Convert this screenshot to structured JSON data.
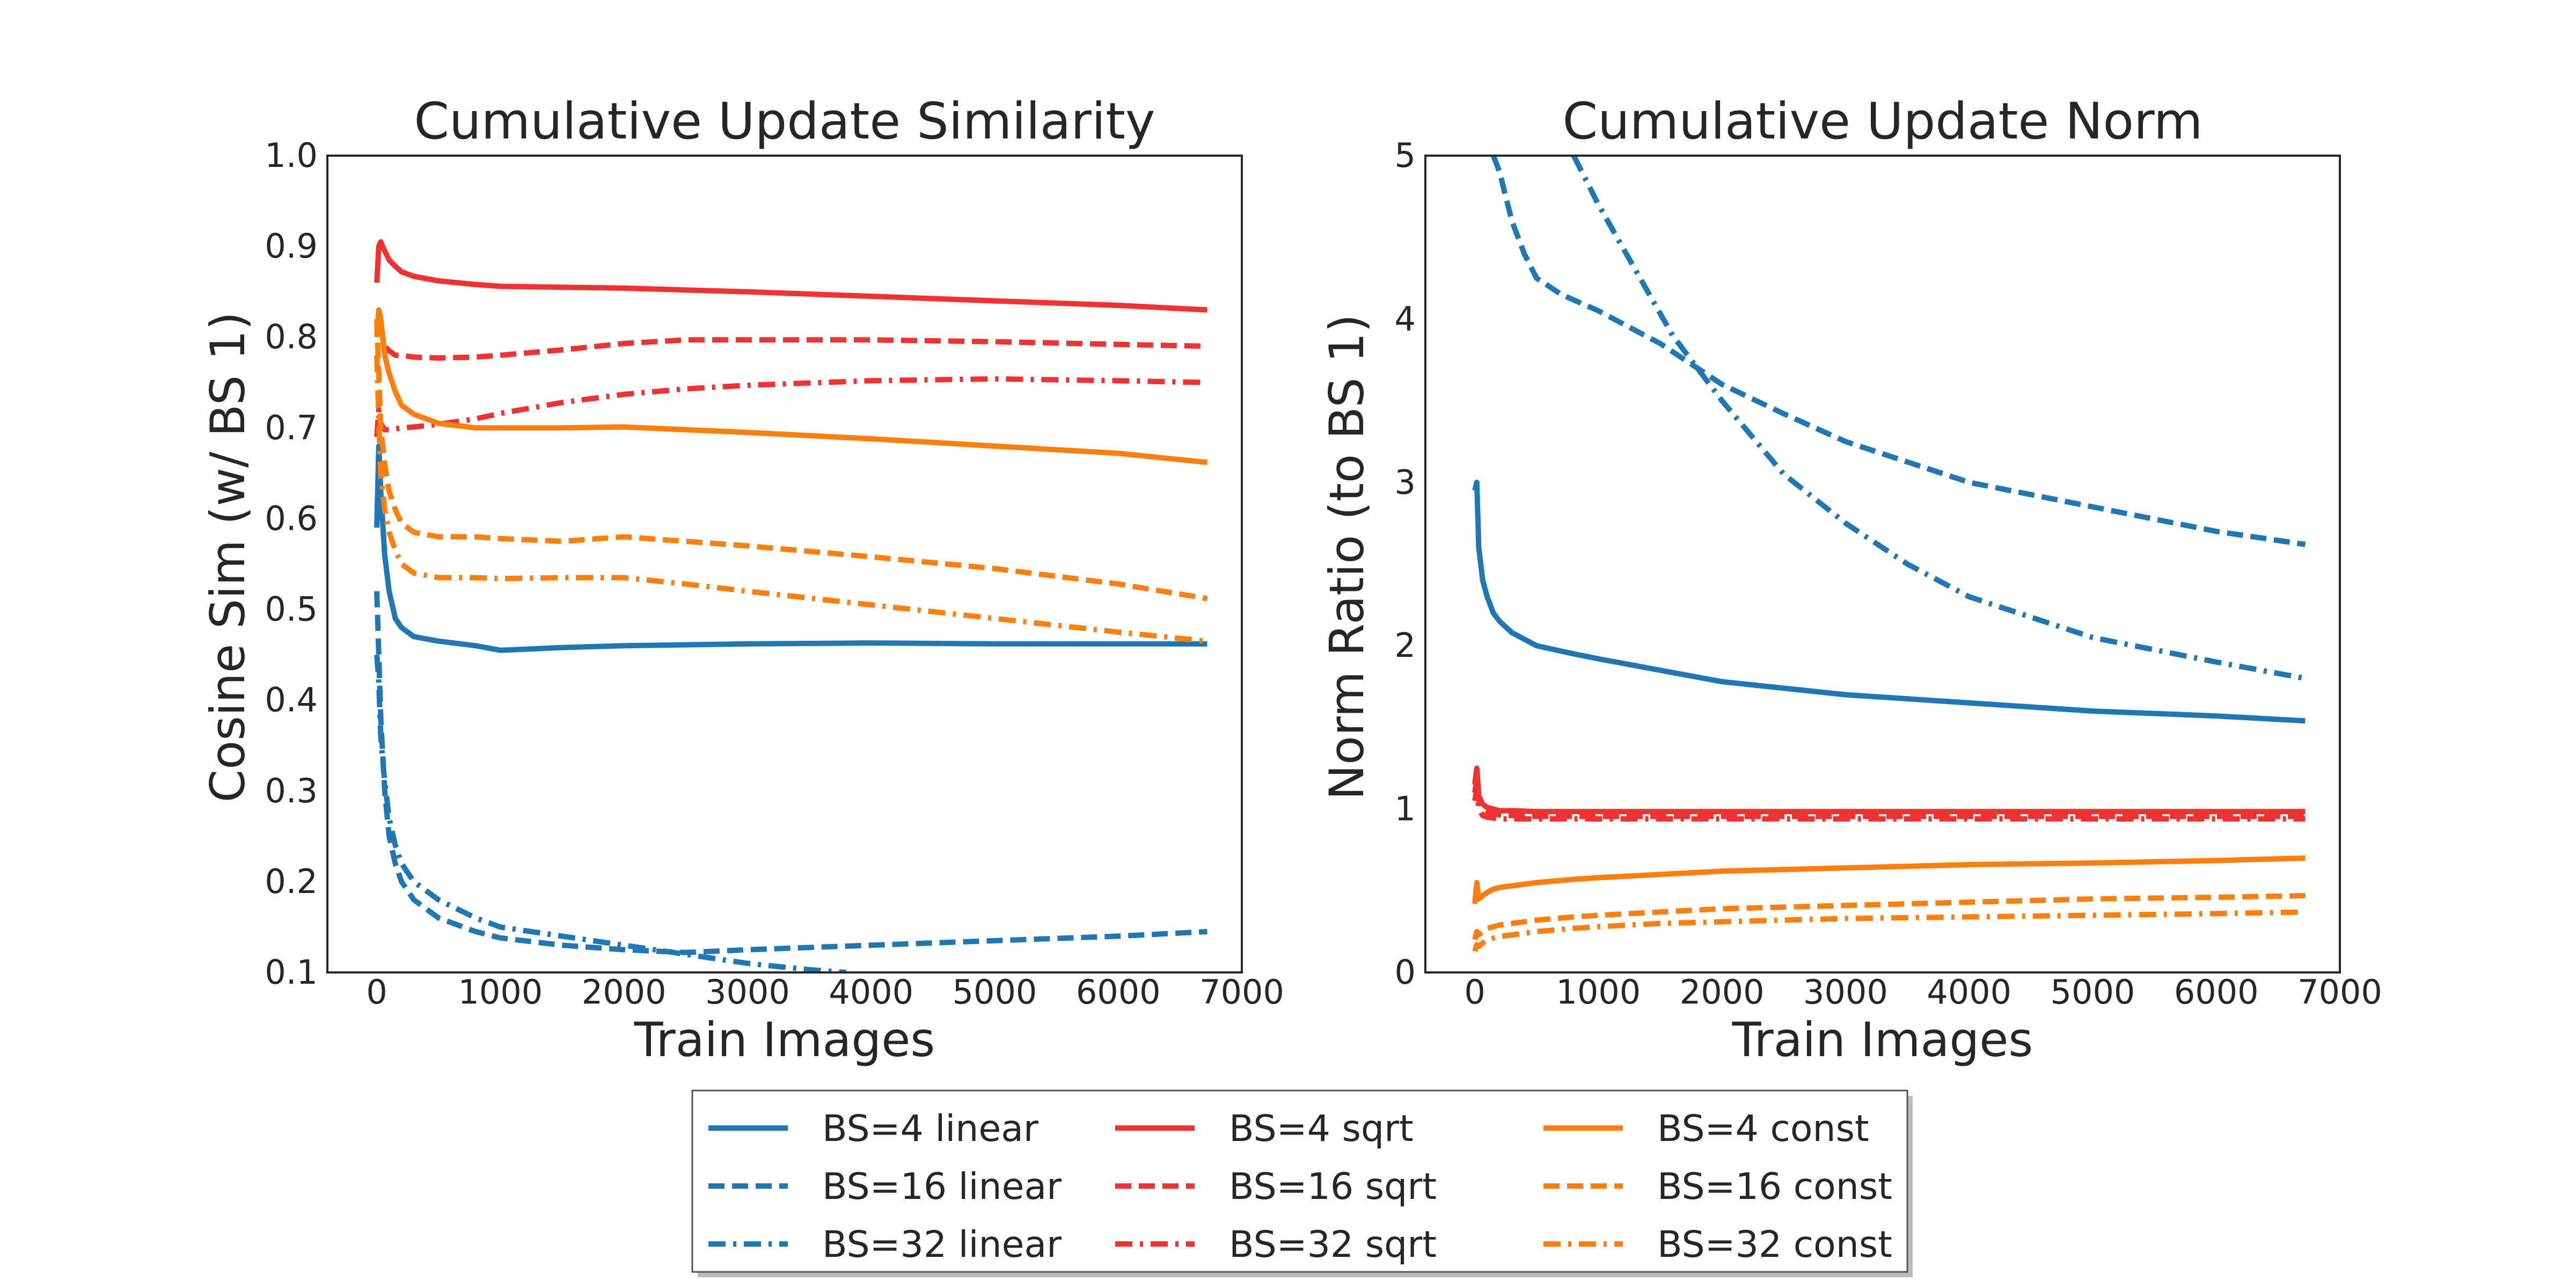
{
  "colors": {
    "linear": "#1f77b4",
    "sqrt": "#f03232",
    "const": "#ff7f0e",
    "axes": "#262626"
  },
  "legend": {
    "placement": "bottom-center",
    "entries": [
      {
        "label": "BS=4 linear",
        "color": "#1f77b4",
        "dash": "solid"
      },
      {
        "label": "BS=16 linear",
        "color": "#1f77b4",
        "dash": "dashed"
      },
      {
        "label": "BS=32 linear",
        "color": "#1f77b4",
        "dash": "dashdot"
      },
      {
        "label": "BS=4 sqrt",
        "color": "#f03232",
        "dash": "solid"
      },
      {
        "label": "BS=16 sqrt",
        "color": "#f03232",
        "dash": "dashed"
      },
      {
        "label": "BS=32 sqrt",
        "color": "#f03232",
        "dash": "dashdot"
      },
      {
        "label": "BS=4 const",
        "color": "#ff7f0e",
        "dash": "solid"
      },
      {
        "label": "BS=16 const",
        "color": "#ff7f0e",
        "dash": "dashed"
      },
      {
        "label": "BS=32 const",
        "color": "#ff7f0e",
        "dash": "dashdot"
      }
    ]
  },
  "chart_data": [
    {
      "type": "line",
      "title": "Cumulative Update Similarity",
      "xlabel": "Train Images",
      "ylabel": "Cosine Sim (w/ BS 1)",
      "xlim": [
        -400,
        7000
      ],
      "ylim": [
        0.1,
        1.0
      ],
      "xticks": [
        0,
        1000,
        2000,
        3000,
        4000,
        5000,
        6000,
        7000
      ],
      "yticks": [
        0.1,
        0.2,
        0.3,
        0.4,
        0.5,
        0.6,
        0.7,
        0.8,
        0.9,
        1.0
      ],
      "xtick_labels": [
        "0",
        "1000",
        "2000",
        "3000",
        "4000",
        "5000",
        "6000",
        "7000"
      ],
      "ytick_labels": [
        "0.1",
        "0.2",
        "0.3",
        "0.4",
        "0.5",
        "0.6",
        "0.7",
        "0.8",
        "0.9",
        "1.0"
      ],
      "grid": false,
      "series": [
        {
          "name": "BS=4 linear",
          "color": "#1f77b4",
          "dash": "solid",
          "x": [
            0,
            16,
            32,
            64,
            100,
            150,
            200,
            300,
            500,
            800,
            1000,
            1500,
            2000,
            3000,
            4000,
            5000,
            6000,
            6720
          ],
          "y": [
            0.59,
            0.68,
            0.63,
            0.56,
            0.52,
            0.49,
            0.48,
            0.47,
            0.465,
            0.46,
            0.455,
            0.458,
            0.46,
            0.462,
            0.463,
            0.462,
            0.462,
            0.462
          ]
        },
        {
          "name": "BS=16 linear",
          "color": "#1f77b4",
          "dash": "dashed",
          "x": [
            0,
            16,
            32,
            64,
            100,
            150,
            200,
            300,
            500,
            800,
            1000,
            1500,
            2000,
            2500,
            3000,
            4000,
            5000,
            6000,
            6720
          ],
          "y": [
            0.52,
            0.45,
            0.38,
            0.3,
            0.25,
            0.22,
            0.2,
            0.18,
            0.16,
            0.145,
            0.138,
            0.13,
            0.125,
            0.122,
            0.125,
            0.13,
            0.135,
            0.14,
            0.145
          ]
        },
        {
          "name": "BS=32 linear",
          "color": "#1f77b4",
          "dash": "dashdot",
          "x": [
            0,
            16,
            32,
            64,
            100,
            150,
            200,
            300,
            500,
            800,
            1000,
            1500,
            2000,
            2500,
            3000,
            3500,
            3800
          ],
          "y": [
            0.45,
            0.42,
            0.36,
            0.31,
            0.27,
            0.24,
            0.22,
            0.2,
            0.18,
            0.16,
            0.15,
            0.14,
            0.13,
            0.12,
            0.11,
            0.103,
            0.1
          ]
        },
        {
          "name": "BS=4 sqrt",
          "color": "#f03232",
          "dash": "solid",
          "x": [
            0,
            16,
            32,
            64,
            100,
            150,
            200,
            300,
            500,
            800,
            1000,
            1500,
            2000,
            3000,
            4000,
            5000,
            6000,
            6720
          ],
          "y": [
            0.86,
            0.9,
            0.905,
            0.895,
            0.885,
            0.878,
            0.872,
            0.867,
            0.862,
            0.858,
            0.856,
            0.855,
            0.854,
            0.85,
            0.845,
            0.84,
            0.835,
            0.83
          ]
        },
        {
          "name": "BS=16 sqrt",
          "color": "#f03232",
          "dash": "dashed",
          "x": [
            0,
            16,
            32,
            64,
            100,
            150,
            200,
            300,
            500,
            800,
            1000,
            1500,
            2000,
            2500,
            3000,
            4000,
            5000,
            6000,
            6720
          ],
          "y": [
            0.8,
            0.82,
            0.81,
            0.79,
            0.785,
            0.78,
            0.78,
            0.778,
            0.777,
            0.778,
            0.78,
            0.786,
            0.793,
            0.797,
            0.797,
            0.797,
            0.795,
            0.792,
            0.79
          ]
        },
        {
          "name": "BS=32 sqrt",
          "color": "#f03232",
          "dash": "dashdot",
          "x": [
            0,
            16,
            32,
            64,
            100,
            150,
            200,
            300,
            500,
            800,
            1000,
            1500,
            2000,
            2500,
            3000,
            4000,
            5000,
            6000,
            6720
          ],
          "y": [
            0.69,
            0.72,
            0.705,
            0.698,
            0.698,
            0.699,
            0.7,
            0.701,
            0.704,
            0.71,
            0.716,
            0.728,
            0.737,
            0.743,
            0.747,
            0.752,
            0.754,
            0.752,
            0.75
          ]
        },
        {
          "name": "BS=4 const",
          "color": "#ff7f0e",
          "dash": "solid",
          "x": [
            0,
            16,
            32,
            64,
            100,
            150,
            200,
            300,
            500,
            800,
            1000,
            1500,
            2000,
            3000,
            4000,
            5000,
            6000,
            6720
          ],
          "y": [
            0.8,
            0.83,
            0.82,
            0.78,
            0.76,
            0.74,
            0.725,
            0.715,
            0.705,
            0.7,
            0.7,
            0.7,
            0.701,
            0.695,
            0.688,
            0.68,
            0.672,
            0.662
          ]
        },
        {
          "name": "BS=16 const",
          "color": "#ff7f0e",
          "dash": "dashed",
          "x": [
            0,
            16,
            32,
            64,
            100,
            150,
            200,
            300,
            500,
            800,
            1000,
            1500,
            2000,
            2500,
            3000,
            4000,
            5000,
            6000,
            6720
          ],
          "y": [
            0.82,
            0.76,
            0.7,
            0.66,
            0.63,
            0.61,
            0.595,
            0.585,
            0.58,
            0.58,
            0.578,
            0.575,
            0.58,
            0.575,
            0.57,
            0.558,
            0.545,
            0.528,
            0.512
          ]
        },
        {
          "name": "BS=32 const",
          "color": "#ff7f0e",
          "dash": "dashdot",
          "x": [
            0,
            16,
            32,
            64,
            100,
            150,
            200,
            300,
            500,
            800,
            1000,
            1500,
            2000,
            2500,
            3000,
            4000,
            5000,
            6000,
            6720
          ],
          "y": [
            0.78,
            0.71,
            0.65,
            0.61,
            0.585,
            0.565,
            0.55,
            0.54,
            0.535,
            0.535,
            0.534,
            0.535,
            0.535,
            0.528,
            0.52,
            0.505,
            0.49,
            0.475,
            0.465
          ]
        }
      ]
    },
    {
      "type": "line",
      "title": "Cumulative Update Norm",
      "xlabel": "Train Images",
      "ylabel": "Norm Ratio (to BS 1)",
      "xlim": [
        -400,
        7000
      ],
      "ylim": [
        0,
        5
      ],
      "xticks": [
        0,
        1000,
        2000,
        3000,
        4000,
        5000,
        6000,
        7000
      ],
      "yticks": [
        0,
        1,
        2,
        3,
        4,
        5
      ],
      "xtick_labels": [
        "0",
        "1000",
        "2000",
        "3000",
        "4000",
        "5000",
        "6000",
        "7000"
      ],
      "ytick_labels": [
        "0",
        "1",
        "2",
        "3",
        "4",
        "5"
      ],
      "grid": false,
      "series": [
        {
          "name": "BS=4 linear",
          "color": "#1f77b4",
          "dash": "solid",
          "x": [
            0,
            16,
            32,
            64,
            100,
            150,
            200,
            300,
            500,
            800,
            1000,
            1500,
            2000,
            3000,
            4000,
            5000,
            6000,
            6720
          ],
          "y": [
            2.95,
            3.0,
            2.6,
            2.4,
            2.3,
            2.2,
            2.15,
            2.08,
            2.0,
            1.95,
            1.92,
            1.85,
            1.78,
            1.7,
            1.65,
            1.6,
            1.57,
            1.54
          ]
        },
        {
          "name": "BS=16 linear",
          "color": "#1f77b4",
          "dash": "dashed",
          "x": [
            150,
            200,
            300,
            400,
            500,
            700,
            1000,
            1500,
            2000,
            2500,
            3000,
            4000,
            5000,
            6000,
            6720
          ],
          "y": [
            5.0,
            4.9,
            4.6,
            4.4,
            4.25,
            4.15,
            4.05,
            3.85,
            3.6,
            3.42,
            3.25,
            3.0,
            2.85,
            2.7,
            2.62
          ]
        },
        {
          "name": "BS=32 linear",
          "color": "#1f77b4",
          "dash": "dashdot",
          "x": [
            800,
            1000,
            1300,
            1600,
            2000,
            2500,
            3000,
            3500,
            4000,
            5000,
            6000,
            6720
          ],
          "y": [
            5.0,
            4.7,
            4.3,
            3.9,
            3.5,
            3.05,
            2.75,
            2.5,
            2.3,
            2.05,
            1.9,
            1.8
          ]
        },
        {
          "name": "BS=4 sqrt",
          "color": "#f03232",
          "dash": "solid",
          "x": [
            0,
            16,
            32,
            64,
            100,
            150,
            200,
            300,
            500,
            1000,
            2000,
            3000,
            4000,
            5000,
            6000,
            6720
          ],
          "y": [
            1.15,
            1.25,
            1.08,
            1.03,
            1.01,
            1.0,
            0.99,
            0.99,
            0.985,
            0.985,
            0.985,
            0.985,
            0.985,
            0.985,
            0.985,
            0.985
          ]
        },
        {
          "name": "BS=16 sqrt",
          "color": "#f03232",
          "dash": "dashed",
          "x": [
            0,
            16,
            32,
            64,
            100,
            150,
            200,
            300,
            500,
            1000,
            2000,
            3000,
            4000,
            5000,
            6000,
            6720
          ],
          "y": [
            1.1,
            1.18,
            1.05,
            1.0,
            0.98,
            0.97,
            0.965,
            0.96,
            0.955,
            0.955,
            0.955,
            0.955,
            0.955,
            0.955,
            0.955,
            0.955
          ]
        },
        {
          "name": "BS=32 sqrt",
          "color": "#f03232",
          "dash": "dashdot",
          "x": [
            0,
            16,
            32,
            64,
            100,
            150,
            200,
            300,
            500,
            1000,
            2000,
            3000,
            4000,
            5000,
            6000,
            6720
          ],
          "y": [
            1.05,
            1.12,
            1.0,
            0.96,
            0.95,
            0.945,
            0.94,
            0.94,
            0.94,
            0.94,
            0.94,
            0.94,
            0.94,
            0.94,
            0.94,
            0.94
          ]
        },
        {
          "name": "BS=4 const",
          "color": "#ff7f0e",
          "dash": "solid",
          "x": [
            0,
            16,
            32,
            64,
            100,
            150,
            200,
            300,
            500,
            800,
            1000,
            1500,
            2000,
            3000,
            4000,
            5000,
            6000,
            6720
          ],
          "y": [
            0.42,
            0.55,
            0.45,
            0.47,
            0.49,
            0.51,
            0.52,
            0.53,
            0.55,
            0.57,
            0.58,
            0.6,
            0.62,
            0.64,
            0.66,
            0.67,
            0.685,
            0.7
          ]
        },
        {
          "name": "BS=16 const",
          "color": "#ff7f0e",
          "dash": "dashed",
          "x": [
            0,
            16,
            32,
            64,
            100,
            150,
            200,
            300,
            500,
            800,
            1000,
            1500,
            2000,
            3000,
            4000,
            5000,
            6000,
            6720
          ],
          "y": [
            0.2,
            0.25,
            0.23,
            0.25,
            0.27,
            0.28,
            0.29,
            0.3,
            0.32,
            0.34,
            0.35,
            0.37,
            0.39,
            0.41,
            0.43,
            0.45,
            0.46,
            0.47
          ]
        },
        {
          "name": "BS=32 const",
          "color": "#ff7f0e",
          "dash": "dashdot",
          "x": [
            0,
            16,
            32,
            64,
            100,
            150,
            200,
            300,
            500,
            800,
            1000,
            1500,
            2000,
            3000,
            4000,
            5000,
            6000,
            6720
          ],
          "y": [
            0.13,
            0.17,
            0.16,
            0.18,
            0.2,
            0.21,
            0.22,
            0.23,
            0.25,
            0.27,
            0.28,
            0.3,
            0.31,
            0.33,
            0.34,
            0.35,
            0.36,
            0.37
          ]
        }
      ]
    }
  ]
}
